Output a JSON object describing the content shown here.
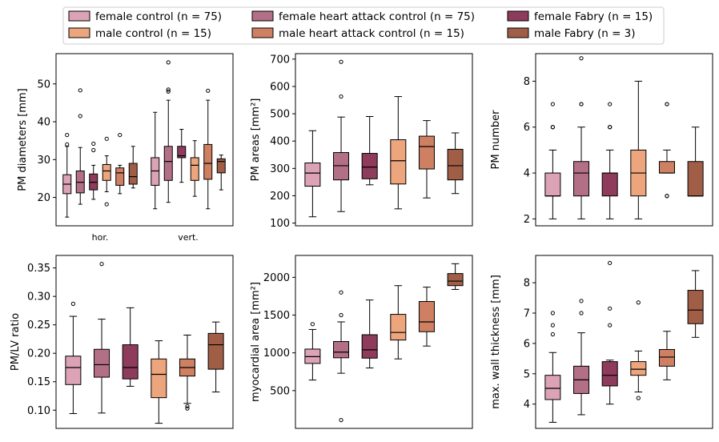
{
  "figure": {
    "colors": {
      "female_control": "#dca3b6",
      "female_heart_attack_control": "#b36f86",
      "female_fabry": "#8e3b5c",
      "male_control": "#eca57c",
      "male_heart_attack_control": "#cf7f62",
      "male_fabry": "#a05e47"
    },
    "legend": {
      "placement": "top-center",
      "entries": [
        {
          "label": "female control (n = 75)",
          "color_key": "female_control"
        },
        {
          "label": "male control (n = 15)",
          "color_key": "male_control"
        },
        {
          "label": "female heart attack control (n = 75)",
          "color_key": "female_heart_attack_control"
        },
        {
          "label": "male heart attack control (n = 15)",
          "color_key": "male_heart_attack_control"
        },
        {
          "label": "female Fabry (n = 15)",
          "color_key": "female_fabry"
        },
        {
          "label": "male Fabry (n = 3)",
          "color_key": "male_fabry"
        }
      ]
    }
  },
  "chart_data": [
    {
      "type": "box",
      "ylabel": "PM diameters [mm]",
      "ylim": [
        12.5,
        58
      ],
      "yticks": [
        20,
        30,
        40,
        50
      ],
      "group_labels": [
        "hor.",
        "vert."
      ],
      "boxes": [
        {
          "group": 0,
          "pos": 0,
          "color_key": "female_control",
          "whisker_low": 14.8,
          "q1": 21,
          "median": 23.5,
          "q3": 26,
          "whisker_high": 33.5,
          "outliers": [
            34,
            36.5
          ]
        },
        {
          "group": 0,
          "pos": 1,
          "color_key": "female_heart_attack_control",
          "whisker_low": 18.2,
          "q1": 21.2,
          "median": 24,
          "q3": 27,
          "whisker_high": 33.2,
          "outliers": [
            41.5,
            48.3
          ]
        },
        {
          "group": 0,
          "pos": 2,
          "color_key": "female_fabry",
          "whisker_low": 19.5,
          "q1": 22,
          "median": 24,
          "q3": 26.2,
          "whisker_high": 28.5,
          "outliers": [
            32.5,
            34.2
          ]
        },
        {
          "group": 0,
          "pos": 3,
          "color_key": "male_control",
          "whisker_low": 21.5,
          "q1": 24.5,
          "median": 27,
          "q3": 28.7,
          "whisker_high": 31,
          "outliers": [
            18.2,
            35.5
          ]
        },
        {
          "group": 0,
          "pos": 4,
          "color_key": "male_heart_attack_control",
          "whisker_low": 21,
          "q1": 23.2,
          "median": 26.5,
          "q3": 27.8,
          "whisker_high": 28.5,
          "outliers": [
            36.5
          ]
        },
        {
          "group": 0,
          "pos": 5,
          "color_key": "male_fabry",
          "whisker_low": 22.5,
          "q1": 23.5,
          "median": 25.5,
          "q3": 29,
          "whisker_high": 33.5,
          "outliers": []
        },
        {
          "group": 1,
          "pos": 0,
          "color_key": "female_control",
          "whisker_low": 17,
          "q1": 23.2,
          "median": 27,
          "q3": 30.5,
          "whisker_high": 42.5,
          "outliers": []
        },
        {
          "group": 1,
          "pos": 1,
          "color_key": "female_heart_attack_control",
          "whisker_low": 18.7,
          "q1": 24.5,
          "median": 29.5,
          "q3": 33.5,
          "whisker_high": 45.7,
          "outliers": [
            48,
            48.5,
            55.7
          ]
        },
        {
          "group": 1,
          "pos": 2,
          "color_key": "female_fabry",
          "whisker_low": 24,
          "q1": 30.5,
          "median": 31,
          "q3": 33.5,
          "whisker_high": 38,
          "outliers": []
        },
        {
          "group": 1,
          "pos": 3,
          "color_key": "male_control",
          "whisker_low": 20.3,
          "q1": 24.5,
          "median": 28.5,
          "q3": 30.5,
          "whisker_high": 35,
          "outliers": []
        },
        {
          "group": 1,
          "pos": 4,
          "color_key": "male_heart_attack_control",
          "whisker_low": 17,
          "q1": 24.8,
          "median": 29,
          "q3": 34,
          "whisker_high": 45.7,
          "outliers": [
            48.2
          ]
        },
        {
          "group": 1,
          "pos": 5,
          "color_key": "male_fabry",
          "whisker_low": 22,
          "q1": 26.5,
          "median": 29.5,
          "q3": 30.2,
          "whisker_high": 31.2,
          "outliers": []
        }
      ]
    },
    {
      "type": "box",
      "ylabel": "PM areas [mm²]",
      "ylim": [
        90,
        720
      ],
      "yticks": [
        100,
        200,
        300,
        400,
        500,
        600,
        700
      ],
      "boxes": [
        {
          "pos": 0,
          "color_key": "female_control",
          "whisker_low": 123,
          "q1": 235,
          "median": 283,
          "q3": 320,
          "whisker_high": 438,
          "outliers": []
        },
        {
          "pos": 1,
          "color_key": "female_heart_attack_control",
          "whisker_low": 142,
          "q1": 258,
          "median": 310,
          "q3": 358,
          "whisker_high": 488,
          "outliers": [
            563,
            690
          ]
        },
        {
          "pos": 2,
          "color_key": "female_fabry",
          "whisker_low": 240,
          "q1": 262,
          "median": 305,
          "q3": 355,
          "whisker_high": 490,
          "outliers": []
        },
        {
          "pos": 3,
          "color_key": "male_control",
          "whisker_low": 152,
          "q1": 243,
          "median": 328,
          "q3": 405,
          "whisker_high": 563,
          "outliers": []
        },
        {
          "pos": 4,
          "color_key": "male_heart_attack_control",
          "whisker_low": 192,
          "q1": 298,
          "median": 380,
          "q3": 418,
          "whisker_high": 475,
          "outliers": []
        },
        {
          "pos": 5,
          "color_key": "male_fabry",
          "whisker_low": 208,
          "q1": 258,
          "median": 310,
          "q3": 370,
          "whisker_high": 430,
          "outliers": []
        }
      ]
    },
    {
      "type": "box",
      "ylabel": "PM number",
      "ylim": [
        1.7,
        9.2
      ],
      "yticks": [
        2,
        4,
        6,
        8
      ],
      "boxes": [
        {
          "pos": 0,
          "color_key": "female_control",
          "whisker_low": 2,
          "q1": 3,
          "median": 3,
          "q3": 4,
          "whisker_high": 5,
          "outliers": [
            6,
            6,
            7
          ]
        },
        {
          "pos": 1,
          "color_key": "female_heart_attack_control",
          "whisker_low": 2,
          "q1": 3,
          "median": 4,
          "q3": 4.5,
          "whisker_high": 6,
          "outliers": [
            7,
            7,
            9
          ]
        },
        {
          "pos": 2,
          "color_key": "female_fabry",
          "whisker_low": 2,
          "q1": 3,
          "median": 4,
          "q3": 4,
          "whisker_high": 5,
          "outliers": [
            6,
            6,
            7
          ]
        },
        {
          "pos": 3,
          "color_key": "male_control",
          "whisker_low": 2,
          "q1": 3,
          "median": 4,
          "q3": 5,
          "whisker_high": 8,
          "outliers": []
        },
        {
          "pos": 4,
          "color_key": "male_heart_attack_control",
          "whisker_low": 4,
          "q1": 4,
          "median": 4,
          "q3": 4.5,
          "whisker_high": 5,
          "outliers": [
            3,
            3,
            7,
            7
          ]
        },
        {
          "pos": 5,
          "color_key": "male_fabry",
          "whisker_low": 3,
          "q1": 3,
          "median": 3,
          "q3": 4.5,
          "whisker_high": 6,
          "outliers": []
        }
      ]
    },
    {
      "type": "box",
      "ylabel": "PM/LV ratio",
      "ylim": [
        0.068,
        0.372
      ],
      "yticks": [
        0.1,
        0.15,
        0.2,
        0.25,
        0.3,
        0.35
      ],
      "ytick_labels": [
        "0.10",
        "0.15",
        "0.20",
        "0.25",
        "0.30",
        "0.35"
      ],
      "boxes": [
        {
          "pos": 0,
          "color_key": "female_control",
          "whisker_low": 0.094,
          "q1": 0.145,
          "median": 0.175,
          "q3": 0.195,
          "whisker_high": 0.265,
          "outliers": [
            0.287
          ]
        },
        {
          "pos": 1,
          "color_key": "female_heart_attack_control",
          "whisker_low": 0.095,
          "q1": 0.158,
          "median": 0.18,
          "q3": 0.207,
          "whisker_high": 0.26,
          "outliers": [
            0.357
          ]
        },
        {
          "pos": 2,
          "color_key": "female_fabry",
          "whisker_low": 0.142,
          "q1": 0.155,
          "median": 0.175,
          "q3": 0.215,
          "whisker_high": 0.28,
          "outliers": []
        },
        {
          "pos": 3,
          "color_key": "male_control",
          "whisker_low": 0.077,
          "q1": 0.122,
          "median": 0.163,
          "q3": 0.19,
          "whisker_high": 0.222,
          "outliers": []
        },
        {
          "pos": 4,
          "color_key": "male_heart_attack_control",
          "whisker_low": 0.112,
          "q1": 0.16,
          "median": 0.175,
          "q3": 0.19,
          "whisker_high": 0.232,
          "outliers": [
            0.103,
            0.107
          ]
        },
        {
          "pos": 5,
          "color_key": "male_fabry",
          "whisker_low": 0.132,
          "q1": 0.172,
          "median": 0.215,
          "q3": 0.235,
          "whisker_high": 0.255,
          "outliers": []
        }
      ]
    },
    {
      "type": "box",
      "ylabel": "myocardial area [mm²]",
      "ylim": [
        0,
        2290
      ],
      "yticks": [
        500,
        1000,
        1500,
        2000
      ],
      "boxes": [
        {
          "pos": 0,
          "color_key": "female_control",
          "whisker_low": 640,
          "q1": 860,
          "median": 950,
          "q3": 1050,
          "whisker_high": 1310,
          "outliers": [
            1380
          ]
        },
        {
          "pos": 1,
          "color_key": "female_heart_attack_control",
          "whisker_low": 730,
          "q1": 935,
          "median": 1010,
          "q3": 1150,
          "whisker_high": 1410,
          "outliers": [
            1500,
            1800,
            110
          ]
        },
        {
          "pos": 2,
          "color_key": "female_fabry",
          "whisker_low": 800,
          "q1": 930,
          "median": 1040,
          "q3": 1240,
          "whisker_high": 1700,
          "outliers": []
        },
        {
          "pos": 3,
          "color_key": "male_control",
          "whisker_low": 920,
          "q1": 1170,
          "median": 1270,
          "q3": 1510,
          "whisker_high": 1890,
          "outliers": []
        },
        {
          "pos": 4,
          "color_key": "male_heart_attack_control",
          "whisker_low": 1090,
          "q1": 1280,
          "median": 1410,
          "q3": 1680,
          "whisker_high": 1870,
          "outliers": []
        },
        {
          "pos": 5,
          "color_key": "male_fabry",
          "whisker_low": 1840,
          "q1": 1890,
          "median": 1950,
          "q3": 2050,
          "whisker_high": 2180,
          "outliers": []
        }
      ]
    },
    {
      "type": "box",
      "ylabel": "max. wall thickness [mm]",
      "ylim": [
        3.2,
        8.9
      ],
      "yticks": [
        4,
        5,
        6,
        7,
        8
      ],
      "boxes": [
        {
          "pos": 0,
          "color_key": "female_control",
          "whisker_low": 3.4,
          "q1": 4.15,
          "median": 4.52,
          "q3": 4.95,
          "whisker_high": 5.7,
          "outliers": [
            6.3,
            6.6,
            7.0
          ]
        },
        {
          "pos": 1,
          "color_key": "female_heart_attack_control",
          "whisker_low": 3.65,
          "q1": 4.35,
          "median": 4.8,
          "q3": 5.25,
          "whisker_high": 6.35,
          "outliers": [
            7.0,
            7.4
          ]
        },
        {
          "pos": 2,
          "color_key": "female_fabry",
          "whisker_low": 4.0,
          "q1": 4.6,
          "median": 4.95,
          "q3": 5.4,
          "whisker_high": 5.45,
          "outliers": [
            6.6,
            7.15,
            8.65
          ]
        },
        {
          "pos": 3,
          "color_key": "male_control",
          "whisker_low": 4.4,
          "q1": 4.95,
          "median": 5.15,
          "q3": 5.4,
          "whisker_high": 5.75,
          "outliers": [
            4.2,
            7.35
          ]
        },
        {
          "pos": 4,
          "color_key": "male_heart_attack_control",
          "whisker_low": 4.8,
          "q1": 5.25,
          "median": 5.55,
          "q3": 5.8,
          "whisker_high": 6.4,
          "outliers": []
        },
        {
          "pos": 5,
          "color_key": "male_fabry",
          "whisker_low": 6.2,
          "q1": 6.65,
          "median": 7.1,
          "q3": 7.75,
          "whisker_high": 8.4,
          "outliers": []
        }
      ]
    }
  ]
}
